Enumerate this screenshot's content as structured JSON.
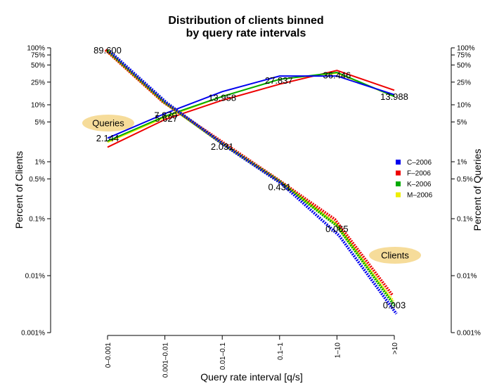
{
  "chart_data": {
    "type": "line",
    "title": "Distribution of clients binned",
    "subtitle": "by query rate intervals",
    "xlabel": "Query rate interval [q/s]",
    "ylabel_left": "Percent of Clients",
    "ylabel_right": "Percent of Queries",
    "y_scale": "log",
    "ylim": [
      0.001,
      100
    ],
    "categories": [
      "0–0.001",
      "0.001–0.01",
      "0.01–0.1",
      "0.1–1",
      "1–10",
      ">10"
    ],
    "y_ticks": [
      {
        "value": 100,
        "label": "100%"
      },
      {
        "value": 75,
        "label": "75%"
      },
      {
        "value": 50,
        "label": "50%"
      },
      {
        "value": 25,
        "label": "25%"
      },
      {
        "value": 10,
        "label": "10%"
      },
      {
        "value": 5,
        "label": "5%"
      },
      {
        "value": 1,
        "label": "1%"
      },
      {
        "value": 0.5,
        "label": "0.5%"
      },
      {
        "value": 0.1,
        "label": "0.1%"
      },
      {
        "value": 0.01,
        "label": "0.01%"
      },
      {
        "value": 0.001,
        "label": "0.001%"
      }
    ],
    "legend_position": "right",
    "clients_series": [
      {
        "name": "C–2006",
        "color": "#0000ee",
        "values": [
          89.6,
          11,
          2,
          0.42,
          0.052,
          0.0022
        ]
      },
      {
        "name": "F–2006",
        "color": "#ee0000",
        "values": [
          89.6,
          11,
          2.3,
          0.48,
          0.095,
          0.0045
        ]
      },
      {
        "name": "K–2006",
        "color": "#00aa00",
        "values": [
          89.6,
          11,
          2.1,
          0.45,
          0.075,
          0.003
        ]
      },
      {
        "name": "M–2006",
        "color": "#eeee00",
        "values": [
          89.6,
          11,
          2.1,
          0.46,
          0.08,
          0.0035
        ]
      }
    ],
    "queries_series": [
      {
        "name": "C–2006",
        "color": "#0000ee",
        "values": [
          2.6,
          7.0,
          17,
          32,
          32,
          15
        ]
      },
      {
        "name": "F–2006",
        "color": "#ee0000",
        "values": [
          1.8,
          5.5,
          12,
          23,
          40,
          18
        ]
      },
      {
        "name": "K–2006",
        "color": "#00aa00",
        "values": [
          2.3,
          6.3,
          14,
          28,
          37,
          14
        ]
      },
      {
        "name": "M–2006",
        "color": "#eeee00",
        "values": [
          2.2,
          6.0,
          14,
          28,
          36,
          14
        ]
      }
    ],
    "data_labels": [
      {
        "text": "89.600",
        "series": "clients",
        "index": 0,
        "value": 89.6
      },
      {
        "text": "7.870",
        "series": "clients",
        "index": 1,
        "value": 7.87
      },
      {
        "text": "5.627",
        "series": "clients",
        "index": 1,
        "value": 5.627
      },
      {
        "text": "2.031",
        "series": "clients",
        "index": 2,
        "value": 2.031
      },
      {
        "text": "0.431",
        "series": "clients",
        "index": 3,
        "value": 0.431
      },
      {
        "text": "0.065",
        "series": "clients",
        "index": 4,
        "value": 0.065
      },
      {
        "text": "0.003",
        "series": "clients",
        "index": 5,
        "value": 0.003
      },
      {
        "text": "2.144",
        "series": "queries",
        "index": 0,
        "value": 2.144
      },
      {
        "text": "13.958",
        "series": "queries",
        "index": 2,
        "value": 13.958
      },
      {
        "text": "27.837",
        "series": "queries",
        "index": 3,
        "value": 27.837
      },
      {
        "text": "36.446",
        "series": "queries",
        "index": 4,
        "value": 36.446
      },
      {
        "text": "13.988",
        "series": "queries",
        "index": 5,
        "value": 13.988
      }
    ],
    "annotations": [
      {
        "text": "Queries"
      },
      {
        "text": "Clients"
      }
    ],
    "annotation_color": "#f6dc9a"
  }
}
